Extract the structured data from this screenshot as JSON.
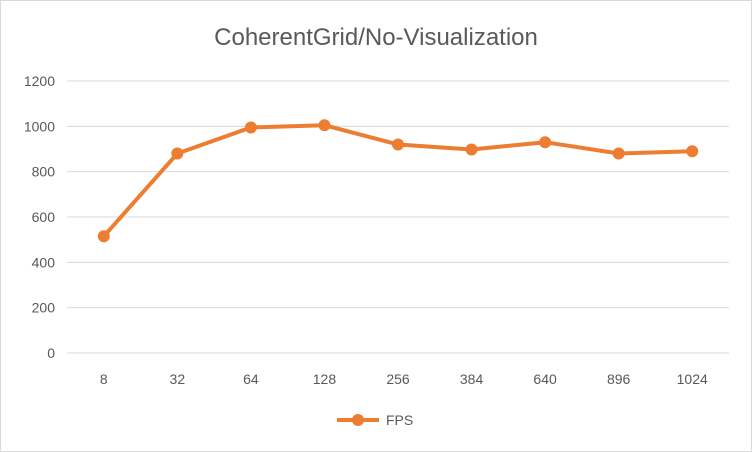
{
  "chart_data": {
    "type": "line",
    "title": "CoherentGrid/No-Visualization",
    "xlabel": "",
    "ylabel": "",
    "categories": [
      "8",
      "32",
      "64",
      "128",
      "256",
      "384",
      "640",
      "896",
      "1024"
    ],
    "series": [
      {
        "name": "FPS",
        "values": [
          515,
          880,
          995,
          1005,
          920,
          898,
          930,
          880,
          890
        ],
        "color": "#ed7d31"
      }
    ],
    "ylim": [
      0,
      1200
    ],
    "yticks": [
      "0",
      "200",
      "400",
      "600",
      "800",
      "1000",
      "1200"
    ],
    "grid": "horizontal",
    "legend": "bottom",
    "markers": "circle"
  }
}
